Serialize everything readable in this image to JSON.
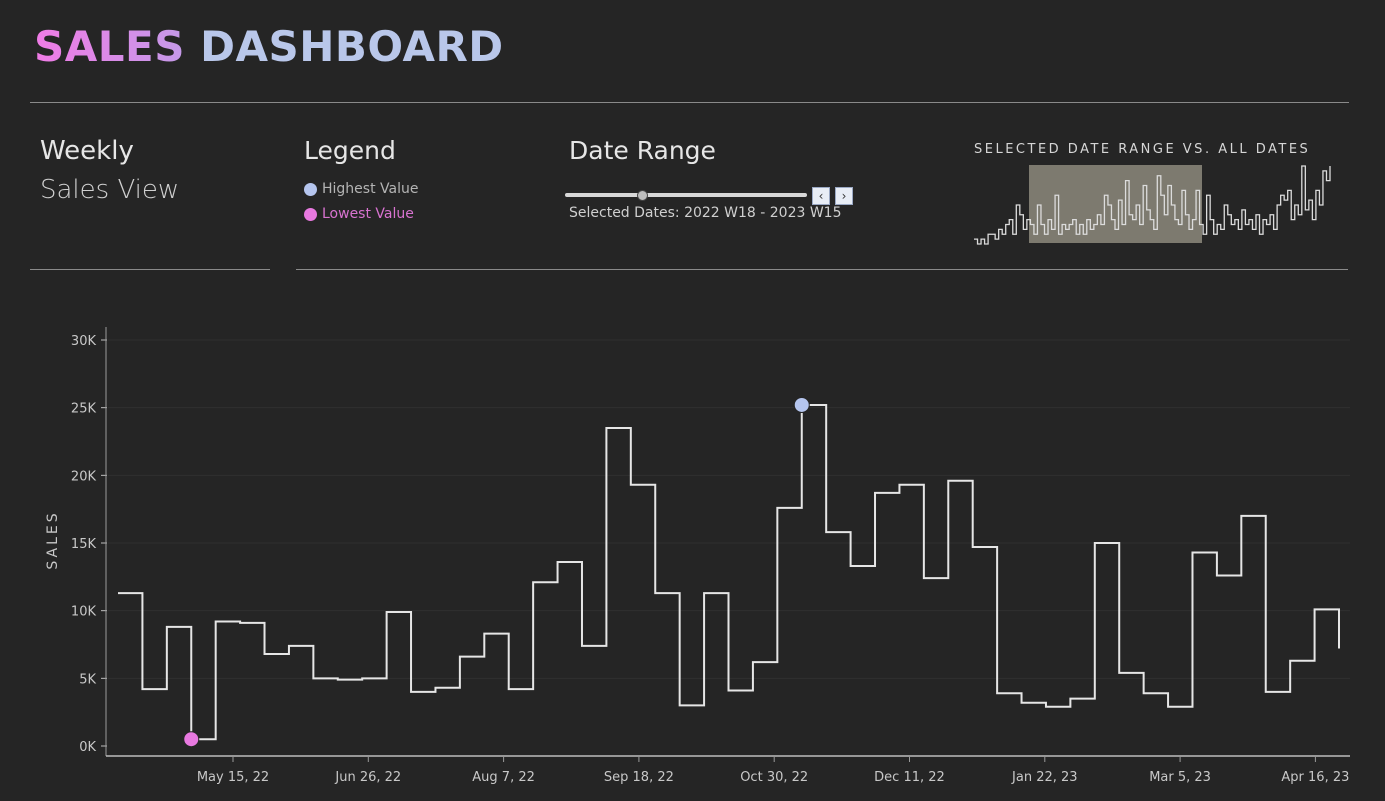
{
  "header": {
    "title_part1": "SALES",
    "title_part2": "DASHBOARD"
  },
  "weekly": {
    "line1": "Weekly",
    "line2": "Sales View"
  },
  "legend": {
    "title": "Legend",
    "items": [
      {
        "label": "Highest Value",
        "color": "#b5c5ee"
      },
      {
        "label": "Lowest Value",
        "color": "#e879e0"
      }
    ]
  },
  "date_range": {
    "title": "Date Range",
    "selected_text": "Selected Dates:  2022 W18 - 2023 W15",
    "prev_icon": "chevron-left-icon",
    "next_icon": "chevron-right-icon"
  },
  "mini_chart": {
    "title": "SELECTED DATE RANGE VS. ALL DATES",
    "values": [
      5,
      4,
      5,
      4,
      6,
      6,
      5,
      7,
      6,
      8,
      9,
      6,
      12,
      10,
      7,
      9,
      8,
      6,
      12,
      8,
      6,
      9,
      7,
      14,
      6,
      8,
      7,
      8,
      9,
      6,
      8,
      6,
      9,
      7,
      8,
      10,
      8,
      14,
      12,
      9,
      7,
      13,
      8,
      17,
      10,
      9,
      12,
      8,
      16,
      11,
      9,
      7,
      18,
      14,
      10,
      16,
      12,
      9,
      8,
      15,
      10,
      7,
      9,
      15,
      8,
      6,
      14,
      9,
      6,
      8,
      7,
      12,
      10,
      8,
      9,
      7,
      11,
      8,
      9,
      7,
      10,
      6,
      9,
      8,
      10,
      7,
      12,
      14,
      13,
      15,
      9,
      12,
      10,
      20,
      11,
      13,
      9,
      15,
      12,
      19,
      17,
      20
    ]
  },
  "chart_data": {
    "type": "line",
    "ylabel": "SALES",
    "xlabel": "",
    "ylim": [
      0,
      30000
    ],
    "y_ticks": [
      "0K",
      "5K",
      "10K",
      "15K",
      "20K",
      "25K",
      "30K"
    ],
    "x_ticks": [
      "May 15, 22",
      "Jun 26, 22",
      "Aug 7, 22",
      "Sep 18, 22",
      "Oct 30, 22",
      "Dec 11, 22",
      "Jan 22, 23",
      "Mar 5, 23",
      "Apr 16, 23"
    ],
    "series": [
      {
        "values": [
          11300,
          4200,
          8800,
          500,
          9200,
          9100,
          6800,
          7400,
          5000,
          4900,
          5000,
          9900,
          4000,
          4300,
          6600,
          8300,
          4200,
          12100,
          13600,
          7400,
          23500,
          19300,
          11300,
          3000,
          11300,
          4100,
          6200,
          17600,
          25200,
          15800,
          13300,
          18700,
          19300,
          12400,
          19600,
          14700,
          3900,
          3200,
          2900,
          3500,
          15000,
          5400,
          3900,
          2900,
          14300,
          12600,
          17000,
          4000,
          6300,
          10100,
          7200
        ]
      }
    ],
    "highest": {
      "week_index": 28,
      "value": 25200
    },
    "lowest": {
      "week_index": 3,
      "value": 500
    }
  }
}
